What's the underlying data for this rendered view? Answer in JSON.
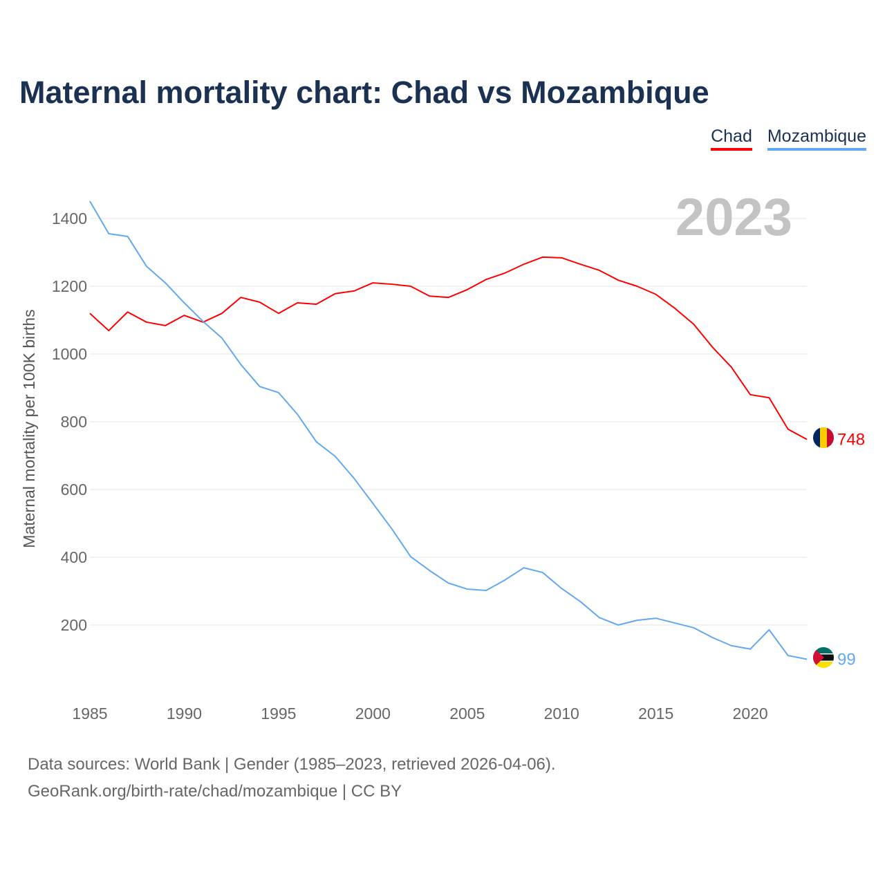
{
  "chart_data": {
    "type": "line",
    "title": "Maternal mortality chart: Chad vs Mozambique",
    "xlabel": "",
    "ylabel": "Maternal mortality per 100K births",
    "year_label": "2023",
    "xlim": [
      1985,
      2023
    ],
    "ylim": [
      0,
      1500
    ],
    "x_ticks": [
      1985,
      1990,
      1995,
      2000,
      2005,
      2010,
      2015,
      2020
    ],
    "y_ticks": [
      200,
      400,
      600,
      800,
      1000,
      1200,
      1400
    ],
    "grid": true,
    "legend_position": "top-right",
    "x": [
      1985,
      1986,
      1987,
      1988,
      1989,
      1990,
      1991,
      1992,
      1993,
      1994,
      1995,
      1996,
      1997,
      1998,
      1999,
      2000,
      2001,
      2002,
      2003,
      2004,
      2005,
      2006,
      2007,
      2008,
      2009,
      2010,
      2011,
      2012,
      2013,
      2014,
      2015,
      2016,
      2017,
      2018,
      2019,
      2020,
      2021,
      2022,
      2023
    ],
    "series": [
      {
        "name": "Chad",
        "color": "#ff0000",
        "end_label": "748",
        "values": [
          1120,
          1069,
          1124,
          1094,
          1084,
          1114,
          1094,
          1120,
          1167,
          1153,
          1120,
          1151,
          1147,
          1178,
          1186,
          1210,
          1206,
          1200,
          1171,
          1167,
          1190,
          1220,
          1239,
          1265,
          1286,
          1284,
          1265,
          1247,
          1218,
          1200,
          1176,
          1135,
          1088,
          1020,
          961,
          880,
          871,
          778,
          748
        ]
      },
      {
        "name": "Mozambique",
        "color": "#62a8f0",
        "end_label": "99",
        "values": [
          1451,
          1355,
          1347,
          1259,
          1210,
          1151,
          1096,
          1047,
          969,
          904,
          886,
          822,
          741,
          698,
          633,
          559,
          484,
          402,
          361,
          324,
          306,
          302,
          333,
          369,
          355,
          308,
          269,
          222,
          200,
          214,
          220,
          206,
          192,
          163,
          139,
          129,
          186,
          110,
          99
        ]
      }
    ]
  },
  "footer": {
    "line1": "Data sources: World Bank | Gender (1985–2023, retrieved 2026-04-06).",
    "line2": "GeoRank.org/birth-rate/chad/mozambique | CC BY"
  }
}
